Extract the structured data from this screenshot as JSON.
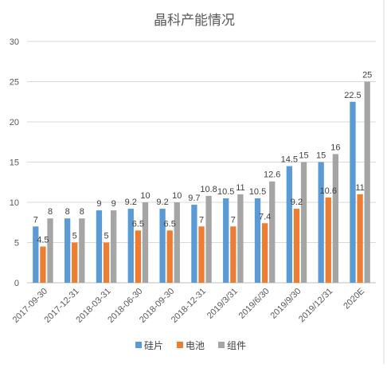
{
  "chart_data": {
    "type": "bar",
    "title": "晶科产能情况",
    "xlabel": "",
    "ylabel": "",
    "ylim": [
      0,
      30
    ],
    "yticks": [
      0,
      5,
      10,
      15,
      20,
      25,
      30
    ],
    "grid": true,
    "legend_position": "bottom",
    "categories": [
      "2017-09-30",
      "2017-12-31",
      "2018-03-31",
      "2018-06-30",
      "2018-09-30",
      "2018-12-31",
      "2019/3/31",
      "2019/6/30",
      "2019/9/30",
      "2019/12/31",
      "2020E"
    ],
    "series": [
      {
        "name": "硅片",
        "color": "#5B9BD5",
        "values": [
          7,
          8,
          9,
          9.2,
          9.2,
          9.7,
          10.5,
          10.5,
          14.5,
          15,
          22.5
        ]
      },
      {
        "name": "电池",
        "color": "#ED7D31",
        "values": [
          4.5,
          5,
          5,
          6.5,
          6.5,
          7,
          7,
          7.4,
          9.2,
          10.6,
          11
        ]
      },
      {
        "name": "组件",
        "color": "#A5A5A5",
        "values": [
          8,
          8,
          9,
          10,
          10,
          10.8,
          11,
          12.6,
          15,
          16,
          25
        ]
      }
    ]
  }
}
